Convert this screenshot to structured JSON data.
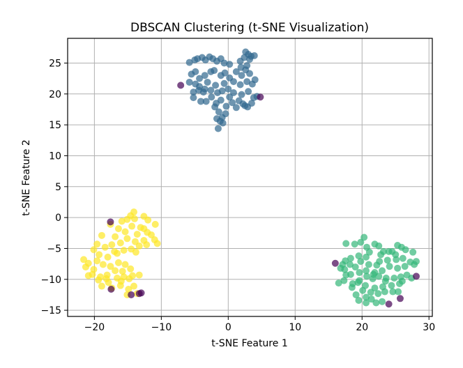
{
  "chart_data": {
    "type": "scatter",
    "title": "DBSCAN Clustering (t-SNE Visualization)",
    "xlabel": "t-SNE Feature 1",
    "ylabel": "t-SNE Feature 2",
    "xlim": [
      -24,
      30.5
    ],
    "ylim": [
      -16,
      29
    ],
    "xticks": [
      -20,
      -10,
      0,
      10,
      20,
      30
    ],
    "yticks": [
      -15,
      -10,
      -5,
      0,
      5,
      10,
      15,
      20,
      25
    ],
    "grid": true,
    "marker_alpha": 0.7,
    "series": [
      {
        "color": "#31688e",
        "points": [
          [
            -5.8,
            25.1
          ],
          [
            -5.0,
            25.5
          ],
          [
            -4.6,
            25.7
          ],
          [
            -3.9,
            25.9
          ],
          [
            -3.4,
            25.5
          ],
          [
            -2.8,
            26.0
          ],
          [
            -2.3,
            25.7
          ],
          [
            -1.7,
            25.3
          ],
          [
            -1.1,
            25.7
          ],
          [
            -0.6,
            25.0
          ],
          [
            0.2,
            24.8
          ],
          [
            1.8,
            25.3
          ],
          [
            2.4,
            25.9
          ],
          [
            2.6,
            26.8
          ],
          [
            3.0,
            26.4
          ],
          [
            3.4,
            26.1
          ],
          [
            3.9,
            26.2
          ],
          [
            3.2,
            25.6
          ],
          [
            2.8,
            24.6
          ],
          [
            1.9,
            24.3
          ],
          [
            -5.5,
            23.2
          ],
          [
            -4.9,
            23.6
          ],
          [
            -4.3,
            22.5
          ],
          [
            -3.5,
            23.0
          ],
          [
            -2.6,
            23.6
          ],
          [
            -1.1,
            23.0
          ],
          [
            -0.5,
            23.4
          ],
          [
            0.2,
            22.6
          ],
          [
            1.2,
            23.6
          ],
          [
            2.0,
            23.0
          ],
          [
            2.6,
            23.9
          ],
          [
            3.2,
            23.3
          ],
          [
            4.0,
            22.3
          ],
          [
            -5.8,
            21.9
          ],
          [
            -4.9,
            21.6
          ],
          [
            -4.3,
            21.2
          ],
          [
            -3.1,
            21.9
          ],
          [
            -1.9,
            21.4
          ],
          [
            -0.6,
            21.7
          ],
          [
            0.8,
            22.0
          ],
          [
            1.8,
            21.5
          ],
          [
            2.8,
            22.0
          ],
          [
            3.6,
            21.6
          ],
          [
            -5.2,
            20.3
          ],
          [
            -4.4,
            20.6
          ],
          [
            -3.7,
            20.3
          ],
          [
            -2.6,
            20.6
          ],
          [
            -1.6,
            20.2
          ],
          [
            -0.9,
            20.5
          ],
          [
            0.0,
            20.8
          ],
          [
            0.8,
            20.2
          ],
          [
            2.0,
            19.9
          ],
          [
            3.0,
            20.4
          ],
          [
            3.8,
            19.4
          ],
          [
            4.3,
            19.6
          ],
          [
            -5.2,
            19.4
          ],
          [
            -4.1,
            18.8
          ],
          [
            -3.3,
            18.8
          ],
          [
            -2.5,
            19.5
          ],
          [
            -1.8,
            18.5
          ],
          [
            -1.1,
            19.0
          ],
          [
            -0.3,
            18.0
          ],
          [
            0.6,
            18.6
          ],
          [
            1.6,
            18.9
          ],
          [
            2.2,
            18.4
          ],
          [
            2.9,
            17.9
          ],
          [
            3.5,
            18.5
          ],
          [
            -2.0,
            17.9
          ],
          [
            -1.4,
            17.1
          ],
          [
            -0.9,
            16.2
          ],
          [
            -0.4,
            16.8
          ],
          [
            -1.7,
            16.0
          ],
          [
            -1.2,
            15.6
          ],
          [
            -0.8,
            15.3
          ],
          [
            -1.5,
            14.4
          ],
          [
            0.2,
            19.5
          ],
          [
            1.2,
            17.8
          ],
          [
            2.5,
            18.1
          ],
          [
            -3.5,
            20.8
          ],
          [
            -2.1,
            23.8
          ]
        ]
      },
      {
        "color": "#35b779",
        "points": [
          [
            20.3,
            -3.2
          ],
          [
            19.8,
            -4.0
          ],
          [
            18.9,
            -4.3
          ],
          [
            17.6,
            -4.2
          ],
          [
            20.7,
            -4.8
          ],
          [
            21.9,
            -4.3
          ],
          [
            22.5,
            -4.6
          ],
          [
            25.3,
            -4.5
          ],
          [
            25.9,
            -4.8
          ],
          [
            24.5,
            -5.5
          ],
          [
            23.2,
            -5.5
          ],
          [
            22.8,
            -6.0
          ],
          [
            21.1,
            -5.6
          ],
          [
            20.6,
            -6.4
          ],
          [
            19.5,
            -6.2
          ],
          [
            18.3,
            -6.6
          ],
          [
            17.5,
            -7.0
          ],
          [
            17.1,
            -7.6
          ],
          [
            18.2,
            -7.6
          ],
          [
            19.8,
            -7.1
          ],
          [
            21.0,
            -7.6
          ],
          [
            22.6,
            -7.1
          ],
          [
            23.8,
            -6.9
          ],
          [
            25.1,
            -6.8
          ],
          [
            26.1,
            -6.6
          ],
          [
            26.5,
            -5.2
          ],
          [
            27.6,
            -5.6
          ],
          [
            28.1,
            -7.1
          ],
          [
            27.8,
            -7.6
          ],
          [
            26.4,
            -7.9
          ],
          [
            25.3,
            -8.2
          ],
          [
            24.1,
            -7.9
          ],
          [
            23.0,
            -8.6
          ],
          [
            21.9,
            -8.9
          ],
          [
            20.6,
            -8.6
          ],
          [
            19.6,
            -8.9
          ],
          [
            18.3,
            -9.2
          ],
          [
            17.4,
            -8.4
          ],
          [
            16.8,
            -8.2
          ],
          [
            17.6,
            -9.3
          ],
          [
            16.5,
            -10.6
          ],
          [
            17.3,
            -10.2
          ],
          [
            18.6,
            -10.7
          ],
          [
            19.6,
            -10.2
          ],
          [
            20.7,
            -9.5
          ],
          [
            21.6,
            -9.9
          ],
          [
            22.5,
            -9.5
          ],
          [
            23.6,
            -9.8
          ],
          [
            24.8,
            -9.8
          ],
          [
            25.8,
            -9.6
          ],
          [
            26.7,
            -9.3
          ],
          [
            27.4,
            -9.8
          ],
          [
            25.6,
            -10.7
          ],
          [
            24.4,
            -11.0
          ],
          [
            23.1,
            -11.2
          ],
          [
            21.9,
            -11.4
          ],
          [
            20.5,
            -11.0
          ],
          [
            19.4,
            -10.5
          ],
          [
            18.5,
            -11.3
          ],
          [
            19.1,
            -12.5
          ],
          [
            20.1,
            -11.8
          ],
          [
            21.3,
            -12.1
          ],
          [
            22.4,
            -12.3
          ],
          [
            23.4,
            -12.0
          ],
          [
            24.6,
            -12.0
          ],
          [
            25.4,
            -12.0
          ],
          [
            20.6,
            -12.9
          ],
          [
            21.4,
            -13.2
          ],
          [
            22.1,
            -13.8
          ],
          [
            23.0,
            -13.6
          ],
          [
            20.6,
            -13.8
          ],
          [
            19.5,
            -13.4
          ],
          [
            25.0,
            -6.0
          ],
          [
            27.2,
            -7.2
          ],
          [
            22.2,
            -7.7
          ],
          [
            23.5,
            -10.3
          ],
          [
            19.0,
            -8.0
          ],
          [
            26.0,
            -10.3
          ],
          [
            24.0,
            -5.5
          ],
          [
            21.7,
            -9.2
          ]
        ]
      },
      {
        "color": "#fde725",
        "points": [
          [
            -14.1,
            0.9
          ],
          [
            -14.6,
            0.3
          ],
          [
            -15.1,
            -0.3
          ],
          [
            -12.6,
            0.2
          ],
          [
            -12.0,
            -0.4
          ],
          [
            -10.9,
            -1.1
          ],
          [
            -13.1,
            -1.6
          ],
          [
            -14.4,
            -1.4
          ],
          [
            -15.9,
            -0.6
          ],
          [
            -16.4,
            -1.8
          ],
          [
            -17.6,
            -1.1
          ],
          [
            -18.9,
            -2.9
          ],
          [
            -16.9,
            -3.1
          ],
          [
            -15.4,
            -2.3
          ],
          [
            -13.6,
            -2.7
          ],
          [
            -12.1,
            -2.4
          ],
          [
            -11.0,
            -3.6
          ],
          [
            -10.6,
            -4.2
          ],
          [
            -12.6,
            -3.7
          ],
          [
            -13.9,
            -3.9
          ],
          [
            -15.1,
            -3.4
          ],
          [
            -16.1,
            -4.1
          ],
          [
            -17.4,
            -4.4
          ],
          [
            -18.4,
            -4.8
          ],
          [
            -19.6,
            -4.3
          ],
          [
            -20.1,
            -5.2
          ],
          [
            -19.3,
            -6.0
          ],
          [
            -18.0,
            -6.4
          ],
          [
            -16.6,
            -5.8
          ],
          [
            -15.6,
            -5.3
          ],
          [
            -14.5,
            -5.1
          ],
          [
            -13.3,
            -4.6
          ],
          [
            -12.2,
            -4.4
          ],
          [
            -21.6,
            -6.8
          ],
          [
            -20.9,
            -7.4
          ],
          [
            -21.3,
            -8.0
          ],
          [
            -20.1,
            -8.4
          ],
          [
            -18.7,
            -7.6
          ],
          [
            -17.6,
            -7.9
          ],
          [
            -16.4,
            -7.3
          ],
          [
            -15.4,
            -7.6
          ],
          [
            -14.6,
            -8.3
          ],
          [
            -16.9,
            -8.6
          ],
          [
            -18.1,
            -9.3
          ],
          [
            -19.1,
            -9.6
          ],
          [
            -20.3,
            -9.2
          ],
          [
            -20.9,
            -9.4
          ],
          [
            -19.4,
            -10.1
          ],
          [
            -17.9,
            -10.5
          ],
          [
            -16.6,
            -9.8
          ],
          [
            -15.6,
            -9.6
          ],
          [
            -14.3,
            -9.4
          ],
          [
            -13.3,
            -9.3
          ],
          [
            -18.9,
            -11.1
          ],
          [
            -17.4,
            -11.4
          ],
          [
            -16.1,
            -11.0
          ],
          [
            -14.9,
            -11.6
          ],
          [
            -14.1,
            -11.1
          ],
          [
            -13.6,
            -12.3
          ],
          [
            -15.1,
            -12.5
          ],
          [
            -12.6,
            -1.8
          ],
          [
            -13.8,
            -5.6
          ],
          [
            -17.0,
            -5.5
          ],
          [
            -15.8,
            -8.7
          ],
          [
            -19.6,
            -7.0
          ],
          [
            -18.2,
            -9.9
          ],
          [
            -16.0,
            -10.3
          ],
          [
            -14.8,
            -9.9
          ],
          [
            -11.5,
            -2.8
          ],
          [
            -14.0,
            -0.2
          ]
        ]
      },
      {
        "color": "#440154",
        "points": [
          [
            -7.1,
            21.4
          ],
          [
            4.8,
            19.5
          ],
          [
            -17.6,
            -0.7
          ],
          [
            -17.5,
            -11.6
          ],
          [
            -14.5,
            -12.5
          ],
          [
            -13.3,
            -12.3
          ],
          [
            -13.0,
            -12.2
          ],
          [
            16.0,
            -7.4
          ],
          [
            24.0,
            -14.0
          ],
          [
            25.7,
            -13.1
          ],
          [
            28.1,
            -9.5
          ]
        ]
      }
    ]
  }
}
